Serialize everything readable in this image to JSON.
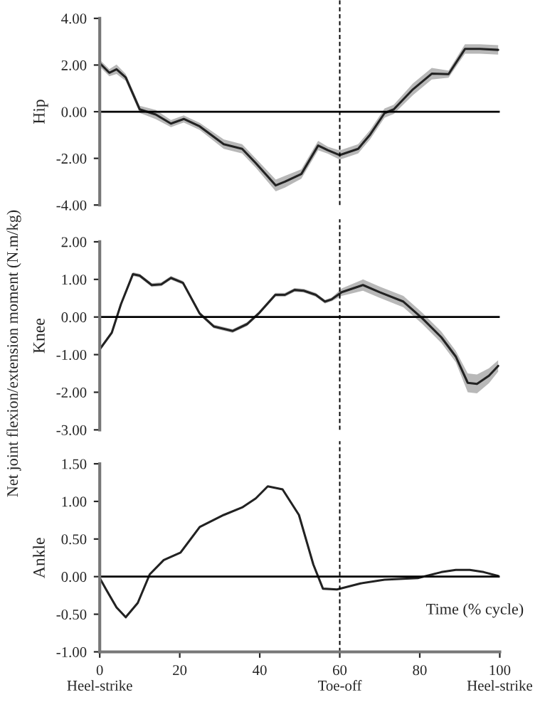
{
  "chart_data": [
    {
      "type": "line",
      "ylabel": "Hip",
      "xlim": [
        0,
        100
      ],
      "ylim": [
        -4,
        4
      ],
      "tick_labels": "y",
      "grid": false,
      "legend": false,
      "yticks": [
        {
          "value": -4,
          "label": "-4.00"
        },
        {
          "value": -2,
          "label": "-2.00"
        },
        {
          "value": 0,
          "label": "0.00"
        },
        {
          "value": 2,
          "label": "2.00"
        },
        {
          "value": 4,
          "label": "4.00"
        }
      ],
      "ref_lines": [
        {
          "axis": "y",
          "value": 0,
          "color": "#000000",
          "line_style": "solid"
        },
        {
          "axis": "x",
          "value": 60,
          "color": "#000000",
          "line_style": "dashed"
        }
      ],
      "series": [
        {
          "color": "#222222",
          "x": [
            0,
            2.4,
            4.2,
            6.5,
            10,
            14,
            17.8,
            21,
            25,
            31,
            35.6,
            39,
            44,
            46.3,
            50.4,
            54.6,
            57,
            60,
            64.6,
            67.6,
            71.2,
            73.5,
            78.3,
            83,
            87.2,
            91.3,
            95,
            99.6
          ],
          "values": [
            2.08,
            1.67,
            1.82,
            1.47,
            0.1,
            -0.12,
            -0.51,
            -0.31,
            -0.63,
            -1.39,
            -1.59,
            -2.2,
            -3.16,
            -3.0,
            -2.67,
            -1.45,
            -1.65,
            -1.86,
            -1.59,
            -0.98,
            -0.06,
            0.1,
            0.96,
            1.63,
            1.61,
            2.69,
            2.69,
            2.65
          ],
          "lower": [
            1.93,
            1.52,
            1.62,
            1.32,
            -0.05,
            -0.32,
            -0.66,
            -0.46,
            -0.78,
            -1.59,
            -1.79,
            -2.4,
            -3.41,
            -3.25,
            -2.87,
            -1.65,
            -1.8,
            -2.06,
            -1.79,
            -1.18,
            -0.26,
            -0.1,
            0.71,
            1.38,
            1.46,
            2.49,
            2.49,
            2.45
          ],
          "upper": [
            2.23,
            1.82,
            2.02,
            1.62,
            0.25,
            0.08,
            -0.36,
            -0.16,
            -0.48,
            -1.19,
            -1.39,
            -2.0,
            -2.91,
            -2.75,
            -2.47,
            -1.25,
            -1.5,
            -1.66,
            -1.39,
            -0.78,
            0.14,
            0.3,
            1.21,
            1.88,
            1.76,
            2.89,
            2.89,
            2.85
          ]
        }
      ]
    },
    {
      "type": "line",
      "ylabel": "Knee",
      "xlim": [
        0,
        100
      ],
      "ylim": [
        -3,
        2
      ],
      "tick_labels": "y",
      "grid": false,
      "legend": false,
      "yticks": [
        {
          "value": -3,
          "label": "-3.00"
        },
        {
          "value": -2,
          "label": "-2.00"
        },
        {
          "value": -1,
          "label": "-1.00"
        },
        {
          "value": 0,
          "label": "0.00"
        },
        {
          "value": 1,
          "label": "1.00"
        },
        {
          "value": 2,
          "label": "2.00"
        }
      ],
      "ref_lines": [
        {
          "axis": "y",
          "value": 0,
          "color": "#000000",
          "line_style": "solid"
        },
        {
          "axis": "x",
          "value": 60,
          "color": "#000000",
          "line_style": "dashed"
        }
      ],
      "annotations": [
        "Net joint flexion/extension moment (N.m/kg)"
      ],
      "series": [
        {
          "color": "#222222",
          "x": [
            0,
            3,
            5.3,
            8.3,
            10,
            13,
            15.4,
            17.8,
            20.8,
            25,
            28.5,
            33.2,
            36.8,
            39.7,
            43.9,
            46.3,
            48.7,
            51,
            54,
            56.3,
            58,
            60.5,
            65.8,
            70,
            75.9,
            80.7,
            85.4,
            89,
            92,
            94.3,
            97.3,
            99.6
          ],
          "values": [
            -0.86,
            -0.42,
            0.34,
            1.14,
            1.1,
            0.85,
            0.87,
            1.04,
            0.91,
            0.09,
            -0.25,
            -0.37,
            -0.19,
            0.09,
            0.59,
            0.59,
            0.72,
            0.7,
            0.59,
            0.41,
            0.47,
            0.66,
            0.85,
            0.66,
            0.41,
            -0.04,
            -0.54,
            -1.05,
            -1.75,
            -1.78,
            -1.56,
            -1.3
          ],
          "lower": [
            -0.91,
            -0.47,
            0.29,
            1.09,
            1.05,
            0.8,
            0.82,
            0.99,
            0.86,
            0.04,
            -0.3,
            -0.42,
            -0.24,
            0.04,
            0.54,
            0.54,
            0.67,
            0.65,
            0.54,
            0.36,
            0.42,
            0.56,
            0.7,
            0.51,
            0.26,
            -0.19,
            -0.69,
            -1.2,
            -2.0,
            -2.03,
            -1.76,
            -1.45
          ],
          "upper": [
            -0.81,
            -0.37,
            0.39,
            1.19,
            1.15,
            0.9,
            0.92,
            1.09,
            0.96,
            0.14,
            -0.2,
            -0.32,
            -0.14,
            0.14,
            0.64,
            0.64,
            0.77,
            0.75,
            0.64,
            0.46,
            0.52,
            0.76,
            1.0,
            0.81,
            0.56,
            0.11,
            -0.39,
            -0.9,
            -1.5,
            -1.53,
            -1.36,
            -1.15
          ]
        }
      ]
    },
    {
      "type": "line",
      "ylabel": "Ankle",
      "xlim": [
        0,
        100
      ],
      "ylim": [
        -1,
        1.5
      ],
      "grid": false,
      "legend": false,
      "yticks": [
        {
          "value": -1,
          "label": "-1.00"
        },
        {
          "value": -0.5,
          "label": "-0.50"
        },
        {
          "value": 0,
          "label": "0.00"
        },
        {
          "value": 0.5,
          "label": "0.50"
        },
        {
          "value": 1,
          "label": "1.00"
        },
        {
          "value": 1.5,
          "label": "1.50"
        }
      ],
      "xticks": [
        {
          "value": 0,
          "label": "0\nHeel-strike"
        },
        20,
        40,
        {
          "value": 60,
          "label": "60\nToe-off"
        },
        80,
        {
          "value": 100,
          "label": "100\nHeel-strike"
        }
      ],
      "ref_lines": [
        {
          "axis": "y",
          "value": 0,
          "color": "#000000",
          "line_style": "solid"
        },
        {
          "axis": "x",
          "value": 60,
          "color": "#000000",
          "line_style": "dashed"
        }
      ],
      "annotations": [
        "Time (% cycle)"
      ],
      "series": [
        {
          "color": "#222222",
          "x": [
            0,
            1.8,
            4.2,
            6.5,
            9.5,
            12.5,
            16,
            20.2,
            25,
            31,
            35.6,
            39,
            42,
            45.7,
            49.8,
            53.4,
            55.8,
            59.3,
            65.2,
            71.2,
            79.5,
            85.4,
            89,
            92.5,
            96,
            99.6
          ],
          "values": [
            -0.02,
            -0.19,
            -0.41,
            -0.54,
            -0.35,
            0.03,
            0.22,
            0.32,
            0.66,
            0.82,
            0.92,
            1.04,
            1.2,
            1.16,
            0.82,
            0.16,
            -0.16,
            -0.17,
            -0.09,
            -0.04,
            -0.02,
            0.06,
            0.09,
            0.09,
            0.06,
            0.01
          ]
        }
      ]
    }
  ]
}
